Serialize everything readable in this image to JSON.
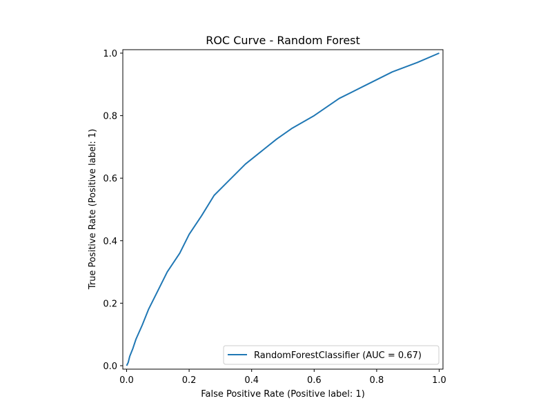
{
  "chart_data": {
    "type": "line",
    "title": "ROC Curve - Random Forest",
    "xlabel": "False Positive Rate (Positive label: 1)",
    "ylabel": "True Positive Rate (Positive label: 1)",
    "xlim": [
      0.0,
      1.0
    ],
    "ylim": [
      0.0,
      1.0
    ],
    "xticks": [
      "0.0",
      "0.2",
      "0.4",
      "0.6",
      "0.8",
      "1.0"
    ],
    "yticks": [
      "0.0",
      "0.2",
      "0.4",
      "0.6",
      "0.8",
      "1.0"
    ],
    "grid": false,
    "legend_position": "bottom-right",
    "series": [
      {
        "name": "RandomForestClassifier (AUC = 0.67)",
        "color": "#1f77b4",
        "x": [
          0.0,
          0.005,
          0.01,
          0.02,
          0.03,
          0.05,
          0.07,
          0.1,
          0.13,
          0.17,
          0.2,
          0.24,
          0.28,
          0.33,
          0.38,
          0.43,
          0.48,
          0.53,
          0.6,
          0.68,
          0.76,
          0.85,
          0.93,
          1.0
        ],
        "y": [
          0.0,
          0.01,
          0.03,
          0.055,
          0.085,
          0.13,
          0.18,
          0.24,
          0.3,
          0.36,
          0.42,
          0.48,
          0.545,
          0.595,
          0.645,
          0.685,
          0.725,
          0.76,
          0.8,
          0.855,
          0.895,
          0.94,
          0.97,
          1.0
        ]
      }
    ]
  }
}
